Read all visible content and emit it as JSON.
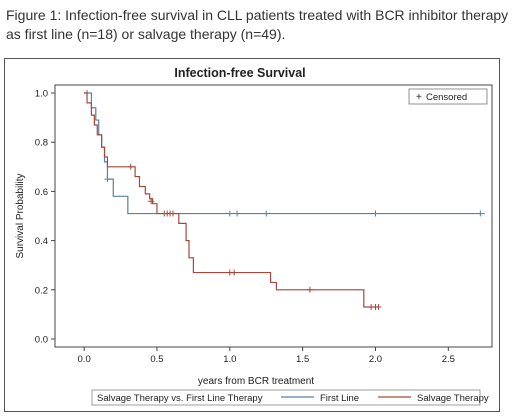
{
  "figure_caption": "Figure 1: Infection-free survival in CLL patients treated with BCR inhibitor therapy as first line (n=18) or salvage therapy (n=49).",
  "colors": {
    "first_line": "#5b7fa6",
    "salvage": "#a34a3a",
    "axis": "#444444",
    "text": "#222222"
  },
  "chart_data": {
    "type": "line",
    "step": true,
    "title": "Infection-free Survival",
    "xlabel": "years from BCR treatment",
    "ylabel": "Survival Probability",
    "xlim": [
      -0.2,
      2.8
    ],
    "ylim": [
      0.0,
      1.0
    ],
    "xticks": [
      "0.0",
      "0.5",
      "1.0",
      "1.5",
      "2.0",
      "2.5"
    ],
    "xtick_values": [
      0.0,
      0.5,
      1.0,
      1.5,
      2.0,
      2.5
    ],
    "yticks": [
      "0.0",
      "0.2",
      "0.4",
      "0.6",
      "0.8",
      "1.0"
    ],
    "ytick_values": [
      0.0,
      0.2,
      0.4,
      0.6,
      0.8,
      1.0
    ],
    "grid": false,
    "inset_legend": {
      "symbol": "+",
      "label": "Censored",
      "placement": "top-right"
    },
    "legend": {
      "title": "Salvage Therapy vs. First Line Therapy",
      "placement": "bottom"
    },
    "series": [
      {
        "name": "First Line",
        "color": "#5b7fa6",
        "steps": [
          [
            0.0,
            1.0
          ],
          [
            0.05,
            0.94
          ],
          [
            0.08,
            0.89
          ],
          [
            0.1,
            0.83
          ],
          [
            0.12,
            0.78
          ],
          [
            0.14,
            0.72
          ],
          [
            0.16,
            0.65
          ],
          [
            0.2,
            0.58
          ],
          [
            0.3,
            0.51
          ],
          [
            2.75,
            0.51
          ]
        ],
        "censored": [
          [
            0.02,
            1.0
          ],
          [
            0.16,
            0.65
          ],
          [
            1.0,
            0.51
          ],
          [
            1.05,
            0.51
          ],
          [
            1.25,
            0.51
          ],
          [
            2.0,
            0.51
          ],
          [
            2.72,
            0.51
          ]
        ]
      },
      {
        "name": "Salvage Therapy",
        "color": "#a34a3a",
        "steps": [
          [
            0.0,
            1.0
          ],
          [
            0.02,
            0.96
          ],
          [
            0.05,
            0.91
          ],
          [
            0.07,
            0.87
          ],
          [
            0.09,
            0.83
          ],
          [
            0.12,
            0.78
          ],
          [
            0.14,
            0.74
          ],
          [
            0.16,
            0.7
          ],
          [
            0.3,
            0.7
          ],
          [
            0.35,
            0.66
          ],
          [
            0.38,
            0.62
          ],
          [
            0.42,
            0.59
          ],
          [
            0.45,
            0.57
          ],
          [
            0.47,
            0.55
          ],
          [
            0.5,
            0.51
          ],
          [
            0.65,
            0.47
          ],
          [
            0.7,
            0.4
          ],
          [
            0.72,
            0.33
          ],
          [
            0.75,
            0.27
          ],
          [
            1.2,
            0.27
          ],
          [
            1.28,
            0.23
          ],
          [
            1.32,
            0.2
          ],
          [
            1.9,
            0.2
          ],
          [
            1.92,
            0.13
          ],
          [
            2.02,
            0.13
          ]
        ],
        "censored": [
          [
            0.32,
            0.7
          ],
          [
            0.46,
            0.56
          ],
          [
            0.55,
            0.51
          ],
          [
            0.57,
            0.51
          ],
          [
            0.59,
            0.51
          ],
          [
            0.61,
            0.51
          ],
          [
            1.0,
            0.27
          ],
          [
            1.03,
            0.27
          ],
          [
            1.55,
            0.2
          ],
          [
            1.97,
            0.13
          ],
          [
            2.0,
            0.13
          ],
          [
            2.02,
            0.13
          ]
        ]
      }
    ]
  }
}
